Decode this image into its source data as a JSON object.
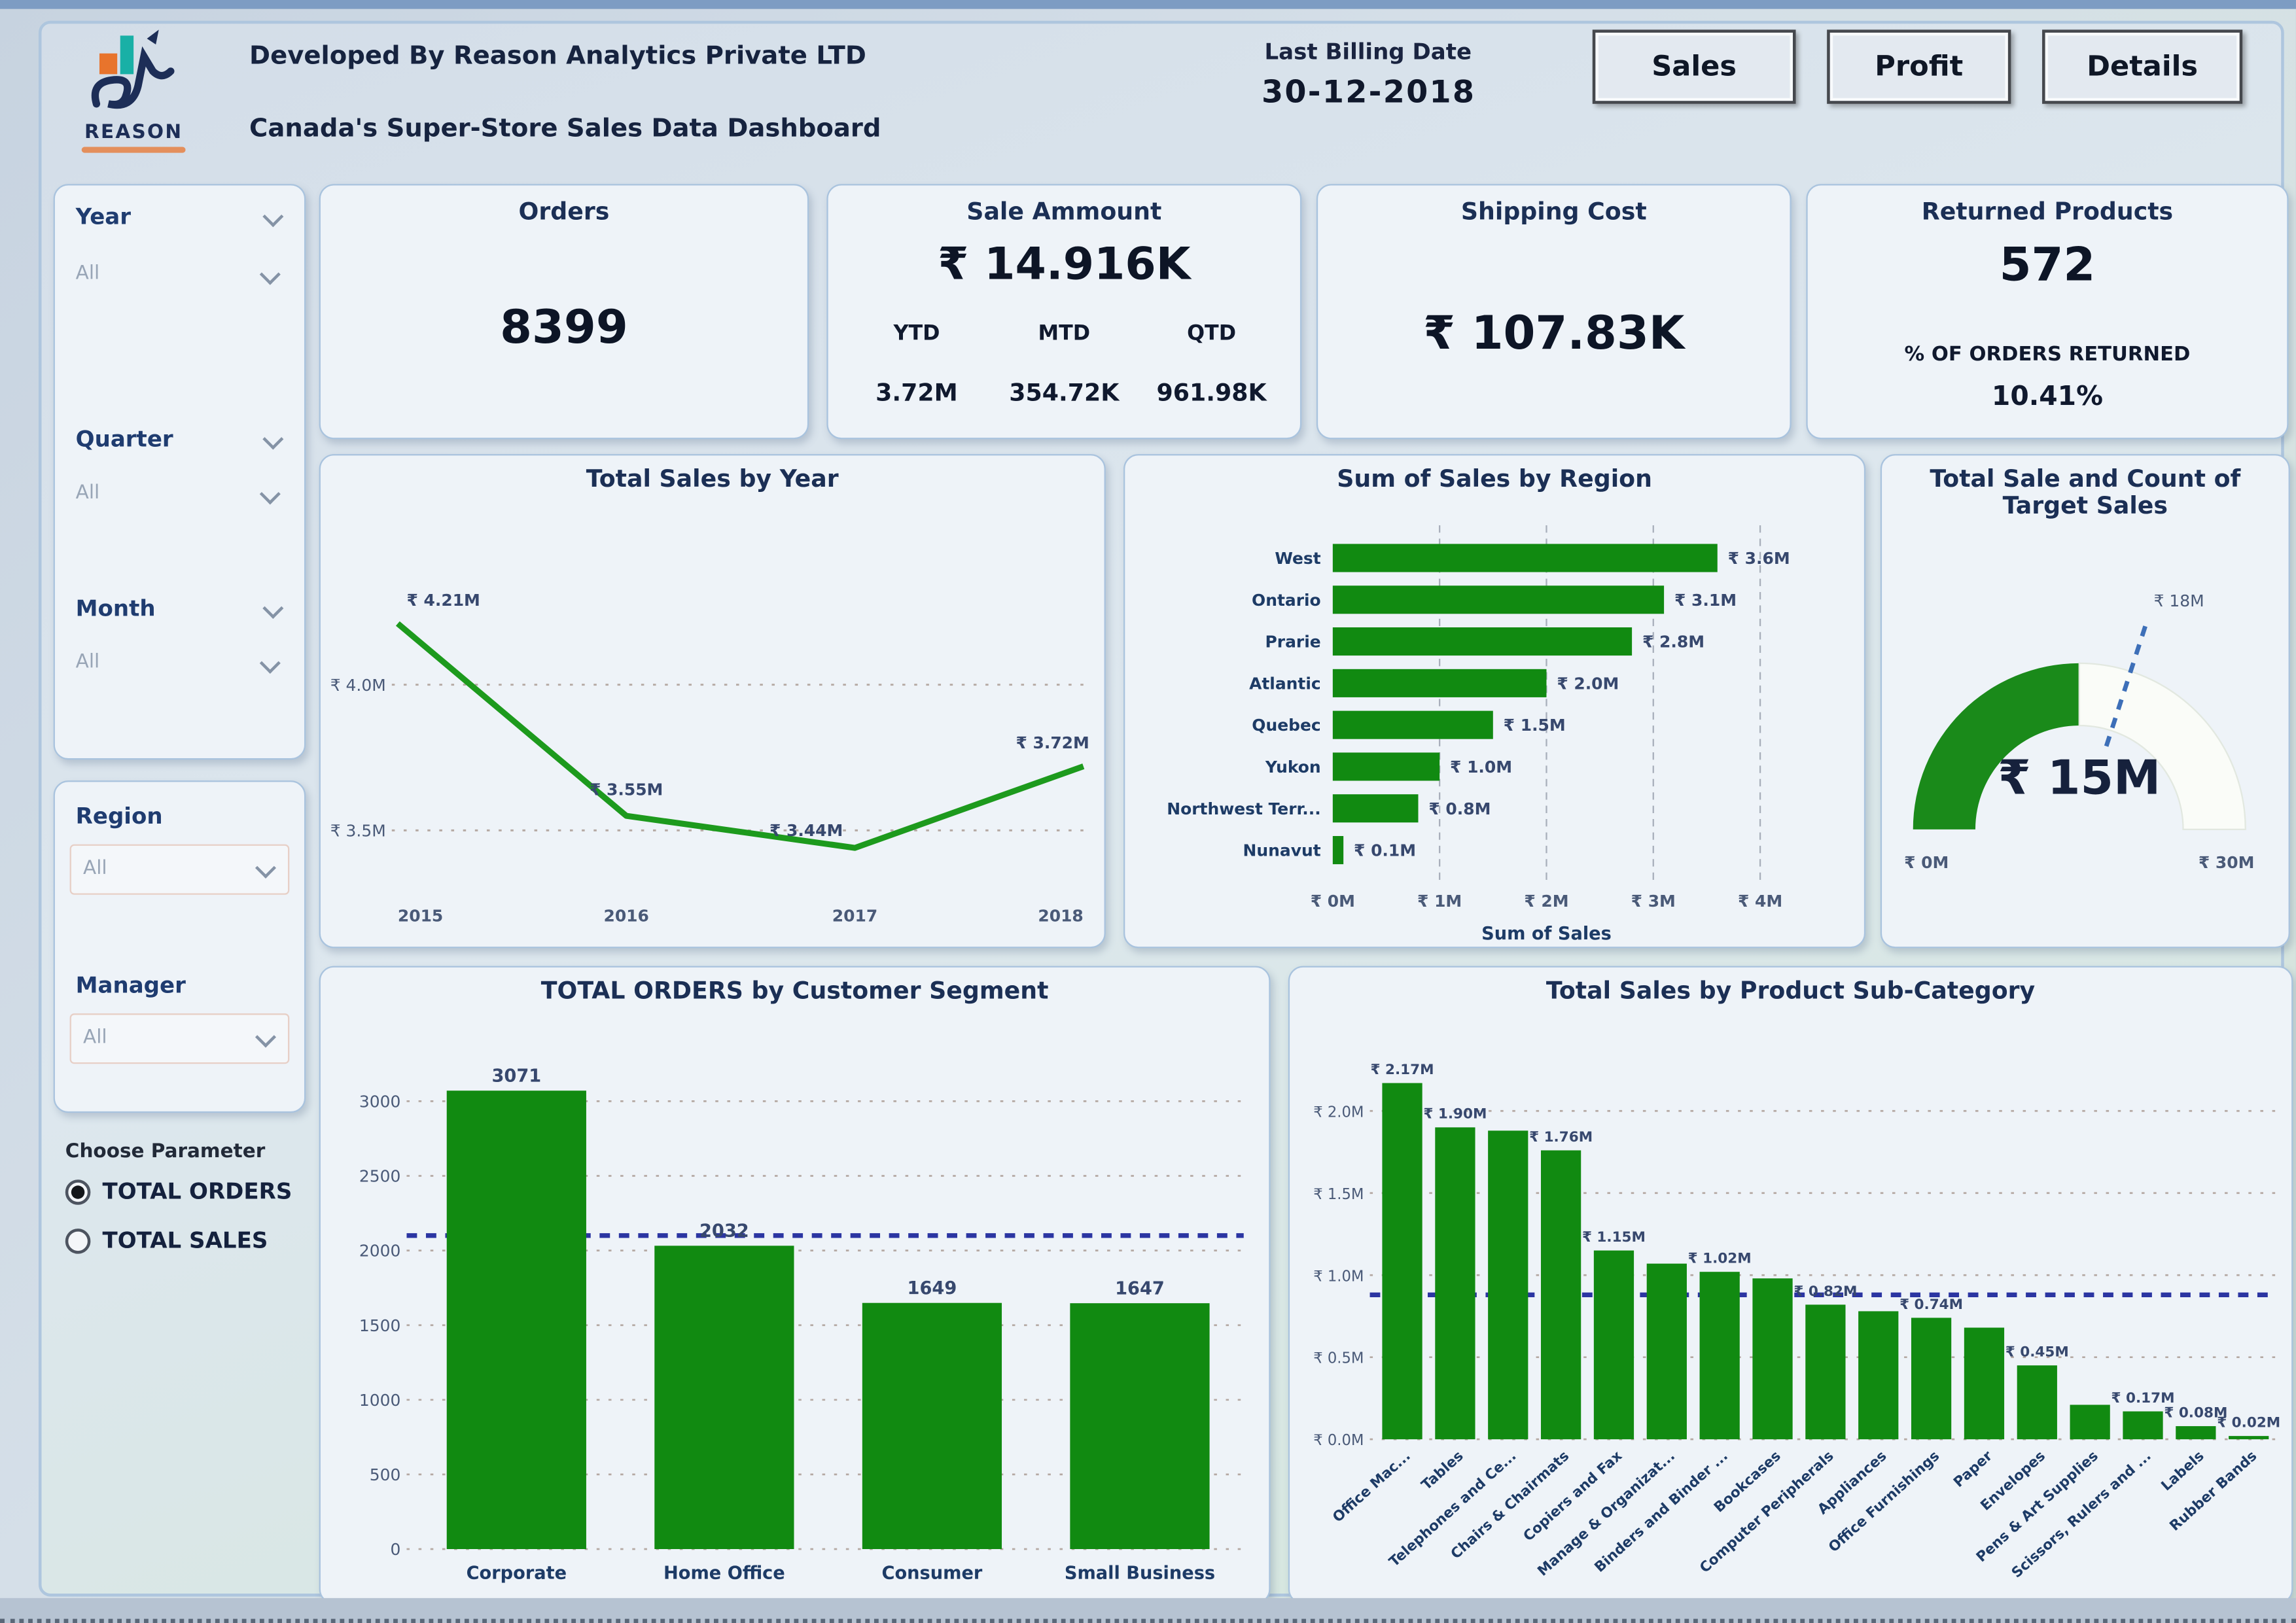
{
  "header": {
    "developed_by": "Developed By Reason Analytics Private LTD",
    "dashboard_title": "Canada's Super-Store Sales Data Dashboard",
    "logo_text": "REASON",
    "last_billing_label": "Last Billing Date",
    "last_billing_date": "30-12-2018",
    "nav_buttons": [
      "Sales",
      "Profit",
      "Details"
    ]
  },
  "filters": {
    "year": {
      "label": "Year",
      "value": "All"
    },
    "quarter": {
      "label": "Quarter",
      "value": "All"
    },
    "month": {
      "label": "Month",
      "value": "All"
    },
    "region": {
      "label": "Region",
      "value": "All"
    },
    "manager": {
      "label": "Manager",
      "value": "All"
    },
    "parameter": {
      "label": "Choose Parameter",
      "options": [
        "TOTAL ORDERS",
        "TOTAL SALES"
      ],
      "selected": "TOTAL ORDERS"
    }
  },
  "kpis": {
    "orders": {
      "title": "Orders",
      "value": "8399"
    },
    "sale_amount": {
      "title": "Sale Ammount",
      "value": "₹ 14.916K",
      "breakdown_labels": [
        "YTD",
        "MTD",
        "QTD"
      ],
      "breakdown_values": [
        "3.72M",
        "354.72K",
        "961.98K"
      ]
    },
    "shipping": {
      "title": "Shipping Cost",
      "value": "₹ 107.83K"
    },
    "returns": {
      "title": "Returned Products",
      "value": "572",
      "sub_label": "% OF ORDERS RETURNED",
      "sub_value": "10.41%"
    }
  },
  "chart_data": [
    {
      "id": "sales_by_year",
      "type": "line",
      "title": "Total Sales by Year",
      "x": [
        "2015",
        "2016",
        "2017",
        "2018"
      ],
      "values": [
        4.21,
        3.55,
        3.44,
        3.72
      ],
      "labels": [
        "₹ 4.21M",
        "₹ 3.55M",
        "₹ 3.44M",
        "₹ 3.72M"
      ],
      "y_ticks": [
        "₹ 4.0M",
        "₹ 3.5M"
      ],
      "y_tick_values": [
        4.0,
        3.5
      ],
      "ylim": [
        3.32,
        4.42
      ],
      "grid": true,
      "color": "#1d9a1d"
    },
    {
      "id": "sales_by_region",
      "type": "bar",
      "orientation": "horizontal",
      "title": "Sum of Sales by Region",
      "categories": [
        "West",
        "Ontario",
        "Prarie",
        "Atlantic",
        "Quebec",
        "Yukon",
        "Northwest Terr...",
        "Nunavut"
      ],
      "values": [
        3.6,
        3.1,
        2.8,
        2.0,
        1.5,
        1.0,
        0.8,
        0.1
      ],
      "labels": [
        "₹ 3.6M",
        "₹ 3.1M",
        "₹ 2.8M",
        "₹ 2.0M",
        "₹ 1.5M",
        "₹ 1.0M",
        "₹ 0.8M",
        "₹ 0.1M"
      ],
      "x_ticks": [
        "₹ 0M",
        "₹ 1M",
        "₹ 2M",
        "₹ 3M",
        "₹ 4M"
      ],
      "x_tick_values": [
        0,
        1,
        2,
        3,
        4
      ],
      "xlim": [
        0,
        4
      ],
      "xlabel": "Sum of Sales",
      "grid": true,
      "color": "#118a11"
    },
    {
      "id": "target_gauge",
      "type": "gauge",
      "title": "Total Sale and Count of Target Sales",
      "value": 15,
      "min": 0,
      "max": 30,
      "target": 18,
      "value_label": "₹ 15M",
      "min_label": "₹ 0M",
      "max_label": "₹ 30M",
      "target_label": "₹ 18M",
      "color": "#1a8a1a"
    },
    {
      "id": "orders_by_segment",
      "type": "bar",
      "title": "TOTAL ORDERS by Customer Segment",
      "categories": [
        "Corporate",
        "Home Office",
        "Consumer",
        "Small Business"
      ],
      "values": [
        3071,
        2032,
        1649,
        1647
      ],
      "labels": [
        "3071",
        "2032",
        "1649",
        "1647"
      ],
      "y_ticks": [
        "3000",
        "2500",
        "2000",
        "1500",
        "1000",
        "500",
        "0"
      ],
      "y_tick_values": [
        3000,
        2500,
        2000,
        1500,
        1000,
        500,
        0
      ],
      "ylim": [
        0,
        3300
      ],
      "avg_line": 2100,
      "grid": true,
      "legend": "none",
      "color": "#118a11"
    },
    {
      "id": "sales_by_subcategory",
      "type": "bar",
      "title": "Total Sales by Product Sub-Category",
      "categories": [
        "Office Mac...",
        "Tables",
        "Telephones and Ce...",
        "Chairs & Chairmats",
        "Copiers and Fax",
        "Manage & Organizat...",
        "Binders and Binder ...",
        "Bookcases",
        "Computer Peripherals",
        "Appliances",
        "Office Furnishings",
        "Paper",
        "Envelopes",
        "Pens & Art Supplies",
        "Scissors, Rulers and ...",
        "Labels",
        "Rubber Bands"
      ],
      "values": [
        2.17,
        1.9,
        1.88,
        1.76,
        1.15,
        1.07,
        1.02,
        0.98,
        0.82,
        0.78,
        0.74,
        0.68,
        0.45,
        0.21,
        0.17,
        0.08,
        0.02
      ],
      "labels": [
        "₹ 2.17M",
        "₹ 1.90M",
        "",
        "₹ 1.76M",
        "₹ 1.15M",
        "",
        "₹ 1.02M",
        "",
        "₹ 0.82M",
        "",
        "₹ 0.74M",
        "",
        "₹ 0.45M",
        "",
        "₹ 0.17M",
        "₹ 0.08M",
        "₹ 0.02M"
      ],
      "y_ticks": [
        "₹ 2.0M",
        "₹ 1.5M",
        "₹ 1.0M",
        "₹ 0.5M",
        "₹ 0.0M"
      ],
      "y_tick_values": [
        2.0,
        1.5,
        1.0,
        0.5,
        0.0
      ],
      "ylim": [
        0,
        2.35
      ],
      "avg_line": 0.88,
      "grid": true,
      "color": "#118a11"
    }
  ]
}
